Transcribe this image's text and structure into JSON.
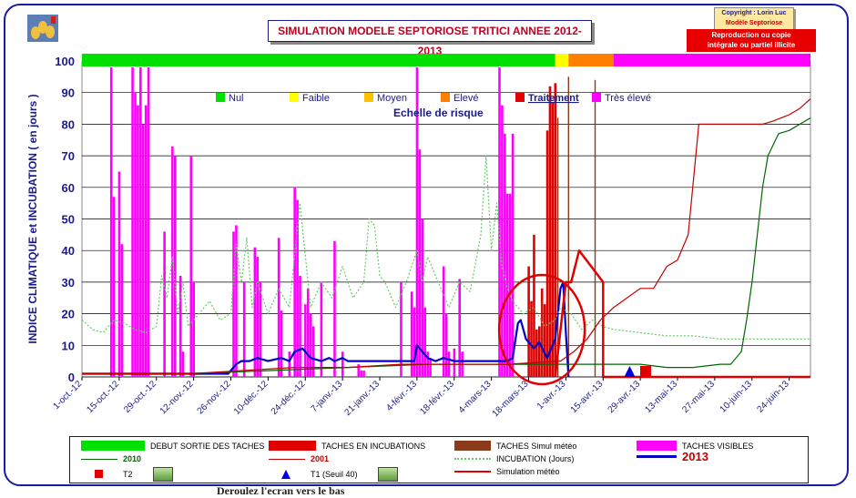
{
  "header": {
    "title": "SIMULATION MODELE SEPTORIOSE TRITICI  ANNEE 2012-2013",
    "copyright_line1": "Copyright : Lorin Luc",
    "copyright_line2": "Modèle Septoriose",
    "repro_line1": "Reproduction ou copie",
    "repro_line2": "intégrale ou partiel illicite"
  },
  "colors": {
    "nul": "#00e000",
    "faible": "#ffff00",
    "moyen": "#ffc000",
    "eleve": "#ff8000",
    "traitement": "#e00000",
    "tres_eleve": "#ff00ff",
    "line_2013": "#0000c8",
    "incubation": "#66cc66",
    "line_2010": "#006600",
    "line_2001": "#c00000",
    "simulation": "#e00000",
    "taches_simul": "#8b3a1a"
  },
  "risk_scale": {
    "title": "Echelle de risque",
    "items": [
      {
        "label": "Nul",
        "color": "#00e000"
      },
      {
        "label": "Faible",
        "color": "#ffff00"
      },
      {
        "label": "Moyen",
        "color": "#ffc000"
      },
      {
        "label": "Elevé",
        "color": "#ff8000"
      },
      {
        "label": "Traitement",
        "color": "#e00000"
      },
      {
        "label": "Très élevé",
        "color": "#ff00ff"
      }
    ]
  },
  "legend": {
    "debut": "DEBUT SORTIE DES TACHES",
    "taches_incub": "TACHES EN INCUBATIONS",
    "taches_simul": "TACHES Simul météo",
    "taches_visibles": "TACHES VISIBLES",
    "l2010": "2010",
    "l2001": "2001",
    "incubation": "INCUBATION (Jours)",
    "l2013": "2013",
    "t2": "T2",
    "t1": "T1 (Seuil 40)",
    "simulation": "Simulation météo"
  },
  "footer_partial": "Deroulez  l'ecran vers le bas",
  "chart_data": {
    "type": "line",
    "ylabel": "INDICE CLIMATIQUE  et  INCUBATION  ( en jours )",
    "ylim": [
      0,
      100
    ],
    "yticks": [
      0,
      10,
      20,
      30,
      40,
      50,
      60,
      70,
      80,
      90,
      100
    ],
    "xlim_days": [
      0,
      274
    ],
    "x_ticks": [
      {
        "day": 0,
        "label": "1-oct.-12"
      },
      {
        "day": 14,
        "label": "15-oct.-12"
      },
      {
        "day": 28,
        "label": "29-oct.-12"
      },
      {
        "day": 42,
        "label": "12-nov.-12"
      },
      {
        "day": 56,
        "label": "26-nov.-12"
      },
      {
        "day": 70,
        "label": "10-déc.-12"
      },
      {
        "day": 84,
        "label": "24-déc.-12"
      },
      {
        "day": 98,
        "label": "7-janv.-13"
      },
      {
        "day": 112,
        "label": "21-janv.-13"
      },
      {
        "day": 126,
        "label": "4-févr.-13"
      },
      {
        "day": 140,
        "label": "18-févr.-13"
      },
      {
        "day": 154,
        "label": "4-mars-13"
      },
      {
        "day": 168,
        "label": "18-mars-13"
      },
      {
        "day": 182,
        "label": "1-avr.-13"
      },
      {
        "day": 196,
        "label": "15-avr.-13"
      },
      {
        "day": 210,
        "label": "29-avr.-13"
      },
      {
        "day": 224,
        "label": "13-mai-13"
      },
      {
        "day": 238,
        "label": "27-mai-13"
      },
      {
        "day": 252,
        "label": "10-juin-13"
      },
      {
        "day": 266,
        "label": "24-juin-13"
      }
    ],
    "top_risk_band": [
      {
        "from": 0,
        "to": 178,
        "level": "nul"
      },
      {
        "from": 178,
        "to": 183,
        "level": "faible"
      },
      {
        "from": 183,
        "to": 200,
        "level": "eleve"
      },
      {
        "from": 200,
        "to": 274,
        "level": "tres_eleve"
      }
    ],
    "taches_visibles_bars": [
      [
        11,
        98
      ],
      [
        12,
        57
      ],
      [
        14,
        65
      ],
      [
        15,
        42
      ],
      [
        19,
        98
      ],
      [
        20,
        90
      ],
      [
        21,
        86
      ],
      [
        22,
        98
      ],
      [
        23,
        80
      ],
      [
        24,
        86
      ],
      [
        25,
        98
      ],
      [
        31,
        46
      ],
      [
        34,
        73
      ],
      [
        35,
        70
      ],
      [
        37,
        32
      ],
      [
        38,
        8
      ],
      [
        41,
        70
      ],
      [
        42,
        30
      ],
      [
        57,
        46
      ],
      [
        58,
        48
      ],
      [
        61,
        30
      ],
      [
        65,
        41
      ],
      [
        66,
        38
      ],
      [
        67,
        30
      ],
      [
        74,
        44
      ],
      [
        75,
        21
      ],
      [
        78,
        8
      ],
      [
        80,
        60
      ],
      [
        81,
        56
      ],
      [
        82,
        32
      ],
      [
        84,
        23
      ],
      [
        85,
        28
      ],
      [
        86,
        20
      ],
      [
        87,
        16
      ],
      [
        90,
        30
      ],
      [
        95,
        43
      ],
      [
        98,
        8
      ],
      [
        104,
        4
      ],
      [
        105,
        2
      ],
      [
        106,
        2
      ],
      [
        120,
        30
      ],
      [
        124,
        27
      ],
      [
        125,
        22
      ],
      [
        126,
        98
      ],
      [
        127,
        72
      ],
      [
        128,
        50
      ],
      [
        129,
        22
      ],
      [
        130,
        8
      ],
      [
        131,
        6
      ],
      [
        136,
        35
      ],
      [
        137,
        20
      ],
      [
        138,
        8
      ],
      [
        140,
        9
      ],
      [
        142,
        31
      ],
      [
        143,
        8
      ],
      [
        157,
        98
      ],
      [
        158,
        86
      ],
      [
        159,
        77
      ],
      [
        160,
        58
      ],
      [
        161,
        58
      ],
      [
        162,
        77
      ]
    ],
    "taches_incubation_bars": [
      [
        168,
        35
      ],
      [
        169,
        24
      ],
      [
        170,
        45
      ],
      [
        171,
        15
      ],
      [
        172,
        16
      ],
      [
        173,
        28
      ],
      [
        174,
        23
      ],
      [
        175,
        78
      ],
      [
        176,
        92
      ],
      [
        177,
        87
      ],
      [
        178,
        93
      ]
    ],
    "taches_simul_bars": [
      [
        173,
        24
      ],
      [
        179,
        82
      ],
      [
        183,
        95
      ],
      [
        193,
        94
      ]
    ],
    "series": [
      {
        "name": "2013",
        "color": "#0000c8",
        "width": 2.2,
        "x": [
          0,
          20,
          30,
          40,
          42,
          55,
          58,
          60,
          63,
          66,
          70,
          75,
          78,
          80,
          83,
          86,
          90,
          93,
          95,
          98,
          100,
          105,
          110,
          115,
          120,
          125,
          126,
          128,
          130,
          133,
          136,
          140,
          145,
          150,
          155,
          160,
          162,
          164,
          165,
          167,
          170,
          172,
          175,
          178,
          180,
          181,
          182,
          183
        ],
        "y": [
          1,
          1,
          1,
          1,
          1,
          1,
          4,
          5,
          5,
          6,
          5,
          6,
          5,
          8,
          9,
          6,
          5,
          6,
          5,
          6,
          5,
          5,
          5,
          5,
          5,
          5,
          10,
          8,
          6,
          5,
          6,
          5,
          5,
          5,
          5,
          5,
          6,
          17,
          18,
          12,
          9,
          11,
          6,
          12,
          28,
          30,
          14,
          0
        ]
      },
      {
        "name": "INCUBATION (Jours)",
        "color": "#66cc66",
        "width": 1.2,
        "dash": "2,2",
        "x": [
          0,
          4,
          8,
          12,
          16,
          20,
          24,
          28,
          30,
          32,
          34,
          36,
          38,
          40,
          44,
          48,
          52,
          56,
          58,
          60,
          62,
          64,
          66,
          70,
          74,
          78,
          82,
          86,
          90,
          94,
          98,
          102,
          106,
          108,
          110,
          112,
          114,
          118,
          122,
          126,
          128,
          130,
          134,
          138,
          142,
          146,
          150,
          152,
          154,
          156,
          158,
          160,
          162,
          166,
          170,
          174,
          178,
          180,
          184,
          188,
          192,
          196,
          200,
          210,
          220,
          230,
          240,
          250,
          260,
          274
        ],
        "y": [
          18,
          15,
          14,
          18,
          17,
          15,
          14,
          16,
          32,
          25,
          38,
          20,
          30,
          16,
          20,
          24,
          18,
          20,
          42,
          30,
          44,
          22,
          30,
          20,
          28,
          22,
          55,
          22,
          30,
          25,
          35,
          25,
          30,
          50,
          48,
          32,
          30,
          22,
          30,
          40,
          30,
          38,
          30,
          22,
          30,
          27,
          45,
          70,
          40,
          55,
          35,
          28,
          24,
          20,
          22,
          16,
          18,
          22,
          20,
          15,
          18,
          16,
          15,
          14,
          13,
          13,
          12,
          12,
          12,
          12
        ]
      },
      {
        "name": "2010",
        "color": "#006600",
        "width": 1.2,
        "x": [
          0,
          40,
          70,
          100,
          130,
          160,
          180,
          190,
          200,
          210,
          220,
          230,
          240,
          244,
          248,
          250,
          252,
          254,
          256,
          258,
          262,
          266,
          270,
          274
        ],
        "y": [
          1,
          1,
          2,
          3,
          4,
          4,
          4,
          4,
          4,
          4,
          3,
          3,
          4,
          4,
          8,
          18,
          30,
          45,
          60,
          70,
          77,
          78,
          80,
          82
        ]
      },
      {
        "name": "2001",
        "color": "#c00000",
        "width": 1.2,
        "x": [
          0,
          40,
          60,
          80,
          100,
          120,
          140,
          160,
          180,
          185,
          190,
          195,
          200,
          205,
          210,
          215,
          220,
          224,
          228,
          232,
          236,
          240,
          244,
          248,
          252,
          256,
          260,
          266,
          270,
          274
        ],
        "y": [
          1,
          1,
          2,
          3,
          3,
          4,
          4,
          4,
          5,
          8,
          12,
          18,
          22,
          25,
          28,
          28,
          35,
          37,
          45,
          80,
          80,
          80,
          80,
          80,
          80,
          80,
          81,
          83,
          85,
          88
        ]
      },
      {
        "name": "Simulation météo",
        "color": "#e00000",
        "width": 2.5,
        "x": [
          178,
          182,
          182,
          184,
          184,
          187,
          196,
          196,
          200,
          210,
          230,
          250,
          274
        ],
        "y": [
          0,
          30,
          30,
          30,
          30,
          40,
          30,
          0,
          0,
          0,
          0,
          0,
          0
        ]
      }
    ],
    "markers": [
      {
        "name": "T1 (Seuil 40)",
        "shape": "triangle",
        "color": "#0000e0",
        "day": 206,
        "value": 0
      },
      {
        "name": "T2",
        "shape": "square",
        "color": "#e00000",
        "day": 212,
        "value": 0
      }
    ],
    "highlight_circle": {
      "center_day": 173,
      "center_value": 15,
      "color": "#e00000"
    }
  }
}
